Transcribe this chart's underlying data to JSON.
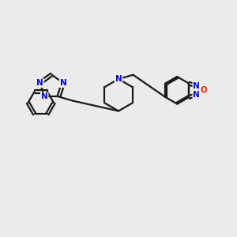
{
  "background_color": "#ebebeb",
  "bond_color": "#1a1a1a",
  "N_color": "#0000ff",
  "O_color": "#ff2200",
  "C_color": "#1a1a1a",
  "line_width": 1.6,
  "figsize": [
    3.0,
    3.0
  ],
  "dpi": 100,
  "xlim": [
    0,
    10
  ],
  "ylim": [
    0,
    10
  ]
}
